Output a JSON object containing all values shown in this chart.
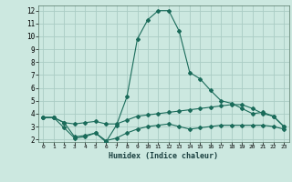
{
  "xlabel": "Humidex (Indice chaleur)",
  "bg_color": "#cce8e0",
  "grid_color": "#aaccc4",
  "line_color": "#1a6b5a",
  "xlim": [
    -0.5,
    23.5
  ],
  "ylim": [
    1.8,
    12.4
  ],
  "xticks": [
    0,
    1,
    2,
    3,
    4,
    5,
    6,
    7,
    8,
    9,
    10,
    11,
    12,
    13,
    14,
    15,
    16,
    17,
    18,
    19,
    20,
    21,
    22,
    23
  ],
  "yticks": [
    2,
    3,
    4,
    5,
    6,
    7,
    8,
    9,
    10,
    11,
    12
  ],
  "line1_x": [
    0,
    1,
    2,
    3,
    4,
    5,
    6,
    7,
    8,
    9,
    10,
    11,
    12,
    13,
    14,
    15,
    16,
    17,
    18,
    19,
    20,
    21,
    22,
    23
  ],
  "line1_y": [
    3.7,
    3.7,
    3.3,
    2.2,
    2.3,
    2.5,
    1.8,
    3.1,
    5.3,
    9.8,
    11.3,
    12.0,
    12.0,
    10.4,
    7.2,
    6.7,
    5.8,
    5.0,
    4.8,
    4.4,
    4.0,
    4.1,
    3.8,
    3.0
  ],
  "line2_x": [
    0,
    1,
    2,
    3,
    4,
    5,
    6,
    7,
    8,
    9,
    10,
    11,
    12,
    13,
    14,
    15,
    16,
    17,
    18,
    19,
    20,
    21,
    22,
    23
  ],
  "line2_y": [
    3.7,
    3.7,
    3.3,
    3.2,
    3.3,
    3.4,
    3.2,
    3.2,
    3.5,
    3.8,
    3.9,
    4.0,
    4.1,
    4.2,
    4.3,
    4.4,
    4.5,
    4.6,
    4.7,
    4.7,
    4.4,
    4.0,
    3.8,
    3.0
  ],
  "line3_x": [
    0,
    1,
    2,
    3,
    4,
    5,
    6,
    7,
    8,
    9,
    10,
    11,
    12,
    13,
    14,
    15,
    16,
    17,
    18,
    19,
    20,
    21,
    22,
    23
  ],
  "line3_y": [
    3.7,
    3.7,
    2.9,
    2.1,
    2.2,
    2.5,
    1.9,
    2.1,
    2.5,
    2.8,
    3.0,
    3.1,
    3.2,
    3.0,
    2.8,
    2.9,
    3.0,
    3.1,
    3.1,
    3.1,
    3.1,
    3.1,
    3.0,
    2.8
  ]
}
